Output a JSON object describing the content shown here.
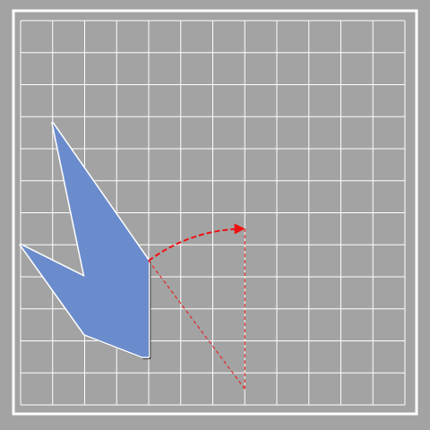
{
  "diagram": {
    "background_color": "#a3a3a3",
    "grid_color": "#ffffff",
    "grid": {
      "columns": 12,
      "rows": 12
    },
    "shape": {
      "fill_color": "#6b8ccc",
      "outline_color": "#ffffff",
      "shadow_color": "#000000",
      "vertices_grid": [
        [
          1,
          3.2
        ],
        [
          4,
          7.5
        ],
        [
          4,
          10.5
        ],
        [
          3.8,
          10.5
        ],
        [
          2,
          9.8
        ],
        [
          0,
          7
        ],
        [
          2,
          8
        ],
        [
          1,
          3.2
        ]
      ]
    },
    "rotation": {
      "color": "#ee1111",
      "pivot_grid": [
        7,
        11.5
      ],
      "from_grid": [
        4,
        7.5
      ],
      "to_grid": [
        7,
        6.5
      ]
    }
  }
}
